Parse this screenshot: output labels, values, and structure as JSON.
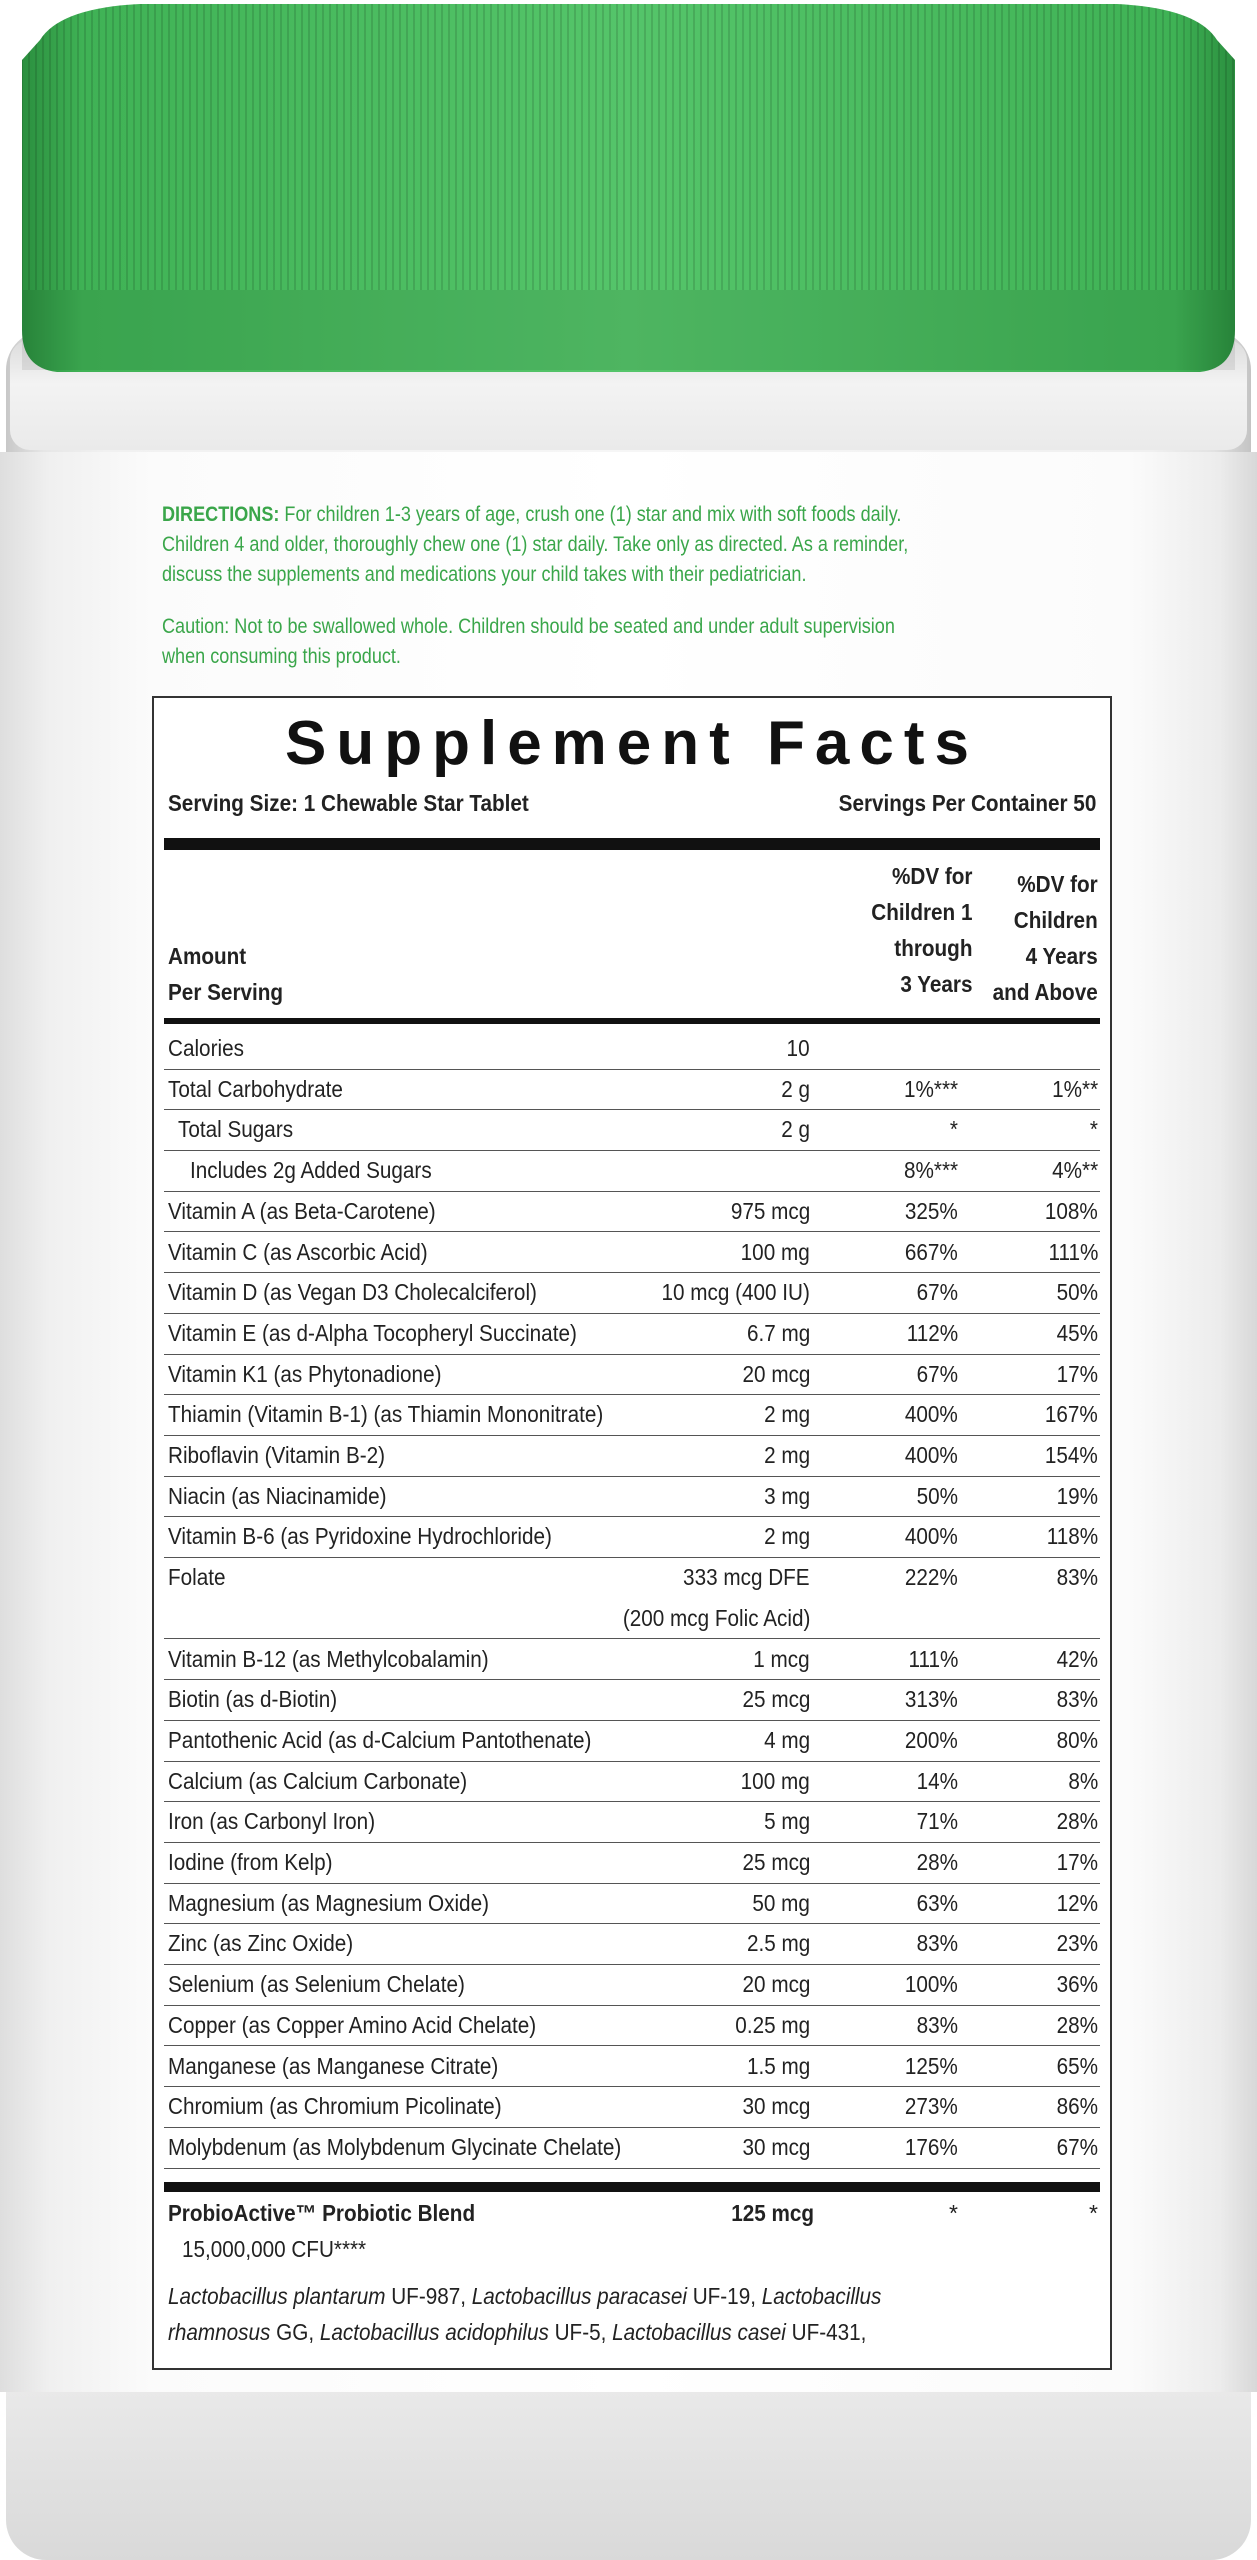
{
  "directions": {
    "lead": "DIRECTIONS:",
    "line1": " For children 1-3 years of age, crush one (1) star and mix with soft foods daily.",
    "line2": "Children 4 and older, thoroughly chew one (1) star daily. Take only as directed. As a reminder,",
    "line3": "discuss the supplements and medications your child takes with their pediatrician.",
    "caution1": "Caution: Not to be swallowed whole. Children should be seated and under adult supervision",
    "caution2": "when consuming this product."
  },
  "facts": {
    "title": "Supplement Facts",
    "serving_size": "Serving Size: 1 Chewable Star Tablet",
    "servings_per_container": "Servings Per Container 50",
    "header": {
      "amount_l1": "Amount",
      "amount_l2": "Per Serving",
      "col1_l1": "%DV for",
      "col1_l2": "Children 1",
      "col1_l3": "through",
      "col1_l4": "3 Years",
      "col2_l1": "%DV for",
      "col2_l2": "Children",
      "col2_l3": "4 Years",
      "col2_l4": "and Above"
    },
    "rows": [
      {
        "name": "Calories",
        "amount": "10",
        "dv1": "",
        "dv2": ""
      },
      {
        "name": "Total Carbohydrate",
        "amount": "2 g",
        "dv1": "1%***",
        "dv2": "1%**"
      },
      {
        "name": "Total Sugars",
        "amount": "2 g",
        "dv1": "*",
        "dv2": "*"
      },
      {
        "name": "Includes 2g Added Sugars",
        "amount": "",
        "dv1": "8%***",
        "dv2": "4%**"
      },
      {
        "name": "Vitamin A (as Beta-Carotene)",
        "amount": "975 mcg",
        "dv1": "325%",
        "dv2": "108%"
      },
      {
        "name": "Vitamin C (as Ascorbic Acid)",
        "amount": "100 mg",
        "dv1": "667%",
        "dv2": "111%"
      },
      {
        "name": "Vitamin D (as Vegan D3 Cholecalciferol)",
        "amount": "10 mcg (400 IU)",
        "dv1": "67%",
        "dv2": "50%"
      },
      {
        "name": "Vitamin E (as d-Alpha Tocopheryl Succinate)",
        "amount": "6.7 mg",
        "dv1": "112%",
        "dv2": "45%"
      },
      {
        "name": "Vitamin K1 (as Phytonadione)",
        "amount": "20 mcg",
        "dv1": "67%",
        "dv2": "17%"
      },
      {
        "name": "Thiamin (Vitamin B-1) (as Thiamin Mononitrate)",
        "amount": "2 mg",
        "dv1": "400%",
        "dv2": "167%"
      },
      {
        "name": "Riboflavin (Vitamin B-2)",
        "amount": "2 mg",
        "dv1": "400%",
        "dv2": "154%"
      },
      {
        "name": "Niacin (as Niacinamide)",
        "amount": "3 mg",
        "dv1": "50%",
        "dv2": "19%"
      },
      {
        "name": "Vitamin B-6 (as Pyridoxine Hydrochloride)",
        "amount": "2 mg",
        "dv1": "400%",
        "dv2": "118%"
      },
      {
        "name": "Folate",
        "amount": "333 mcg DFE",
        "amount2": "(200 mcg Folic Acid)",
        "dv1": "222%",
        "dv2": "83%"
      },
      {
        "name": "Vitamin B-12 (as Methylcobalamin)",
        "amount": "1 mcg",
        "dv1": "111%",
        "dv2": "42%"
      },
      {
        "name": "Biotin (as d-Biotin)",
        "amount": "25 mcg",
        "dv1": "313%",
        "dv2": "83%"
      },
      {
        "name": "Pantothenic Acid (as d-Calcium Pantothenate)",
        "amount": "4 mg",
        "dv1": "200%",
        "dv2": "80%"
      },
      {
        "name": "Calcium (as Calcium Carbonate)",
        "amount": "100 mg",
        "dv1": "14%",
        "dv2": "8%"
      },
      {
        "name": "Iron (as Carbonyl Iron)",
        "amount": "5 mg",
        "dv1": "71%",
        "dv2": "28%"
      },
      {
        "name": "Iodine (from Kelp)",
        "amount": "25 mcg",
        "dv1": "28%",
        "dv2": "17%"
      },
      {
        "name": "Magnesium (as Magnesium Oxide)",
        "amount": "50 mg",
        "dv1": "63%",
        "dv2": "12%"
      },
      {
        "name": "Zinc (as Zinc Oxide)",
        "amount": "2.5 mg",
        "dv1": "83%",
        "dv2": "23%"
      },
      {
        "name": "Selenium (as Selenium Chelate)",
        "amount": "20 mcg",
        "dv1": "100%",
        "dv2": "36%"
      },
      {
        "name": "Copper (as Copper Amino Acid Chelate)",
        "amount": "0.25 mg",
        "dv1": "83%",
        "dv2": "28%"
      },
      {
        "name": "Manganese (as Manganese Citrate)",
        "amount": "1.5 mg",
        "dv1": "125%",
        "dv2": "65%"
      },
      {
        "name": "Chromium (as Chromium Picolinate)",
        "amount": "30 mcg",
        "dv1": "273%",
        "dv2": "86%"
      },
      {
        "name": "Molybdenum (as Molybdenum Glycinate Chelate)",
        "amount": "30 mcg",
        "dv1": "176%",
        "dv2": "67%"
      }
    ],
    "probiotic": {
      "name": "ProbioActive™ Probiotic Blend",
      "amount": "125 mcg",
      "dv1": "*",
      "dv2": "*",
      "cfu": "15,000,000 CFU****"
    },
    "strains": {
      "s1": "Lactobacillus plantarum",
      "s1c": " UF-987, ",
      "s2": "Lactobacillus paracasei",
      "s2c": " UF-19, ",
      "s3a": "Lactobacillus",
      "s3b": "rhamnosus",
      "s3c": " GG, ",
      "s4": "Lactobacillus acidophilus",
      "s4c": " UF-5, ",
      "s5": "Lactobacillus casei",
      "s5c": " UF-431,"
    }
  },
  "colors": {
    "lid": "#3fb255",
    "lid_dark": "#2b8f3f",
    "text_green": "#3aa64a"
  }
}
